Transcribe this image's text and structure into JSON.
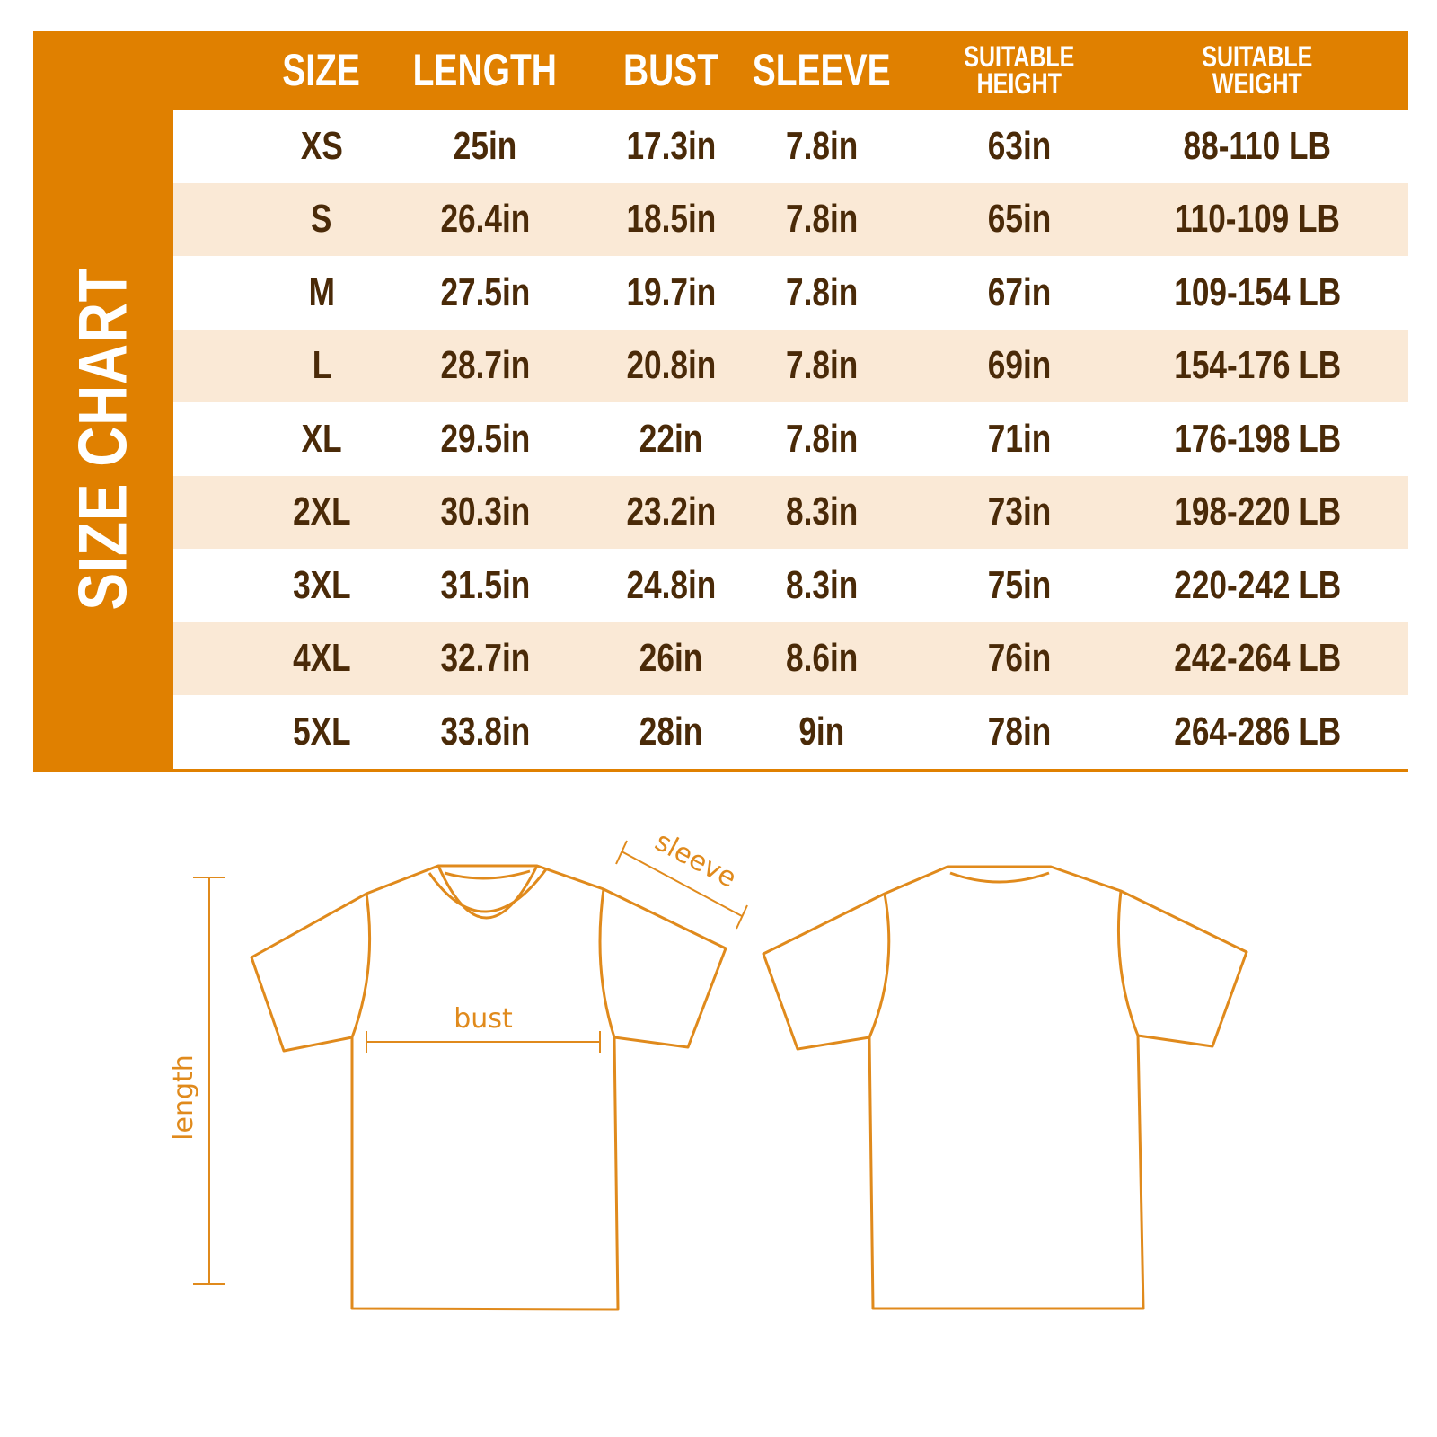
{
  "title": "SIZE CHART",
  "columns": [
    "SIZE",
    "LENGTH",
    "BUST",
    "SLEEVE",
    "SUITABLE\nHEIGHT",
    "SUITABLE\nWEIGHT"
  ],
  "rows": [
    [
      "XS",
      "25in",
      "17.3in",
      "7.8in",
      "63in",
      "88-110 LB"
    ],
    [
      "S",
      "26.4in",
      "18.5in",
      "7.8in",
      "65in",
      "110-109 LB"
    ],
    [
      "M",
      "27.5in",
      "19.7in",
      "7.8in",
      "67in",
      "109-154 LB"
    ],
    [
      "L",
      "28.7in",
      "20.8in",
      "7.8in",
      "69in",
      "154-176 LB"
    ],
    [
      "XL",
      "29.5in",
      "22in",
      "7.8in",
      "71in",
      "176-198 LB"
    ],
    [
      "2XL",
      "30.3in",
      "23.2in",
      "8.3in",
      "73in",
      "198-220 LB"
    ],
    [
      "3XL",
      "31.5in",
      "24.8in",
      "8.3in",
      "75in",
      "220-242 LB"
    ],
    [
      "4XL",
      "32.7in",
      "26in",
      "8.6in",
      "76in",
      "242-264 LB"
    ],
    [
      "5XL",
      "33.8in",
      "28in",
      "9in",
      "78in",
      "264-286 LB"
    ]
  ],
  "diagram": {
    "length_label": "length",
    "bust_label": "bust",
    "sleeve_label": "sleeve"
  },
  "colors": {
    "accent": "#E08000",
    "row_alt": "#FAE9D6",
    "text": "#4A2A08",
    "outline": "#E08A1C"
  }
}
